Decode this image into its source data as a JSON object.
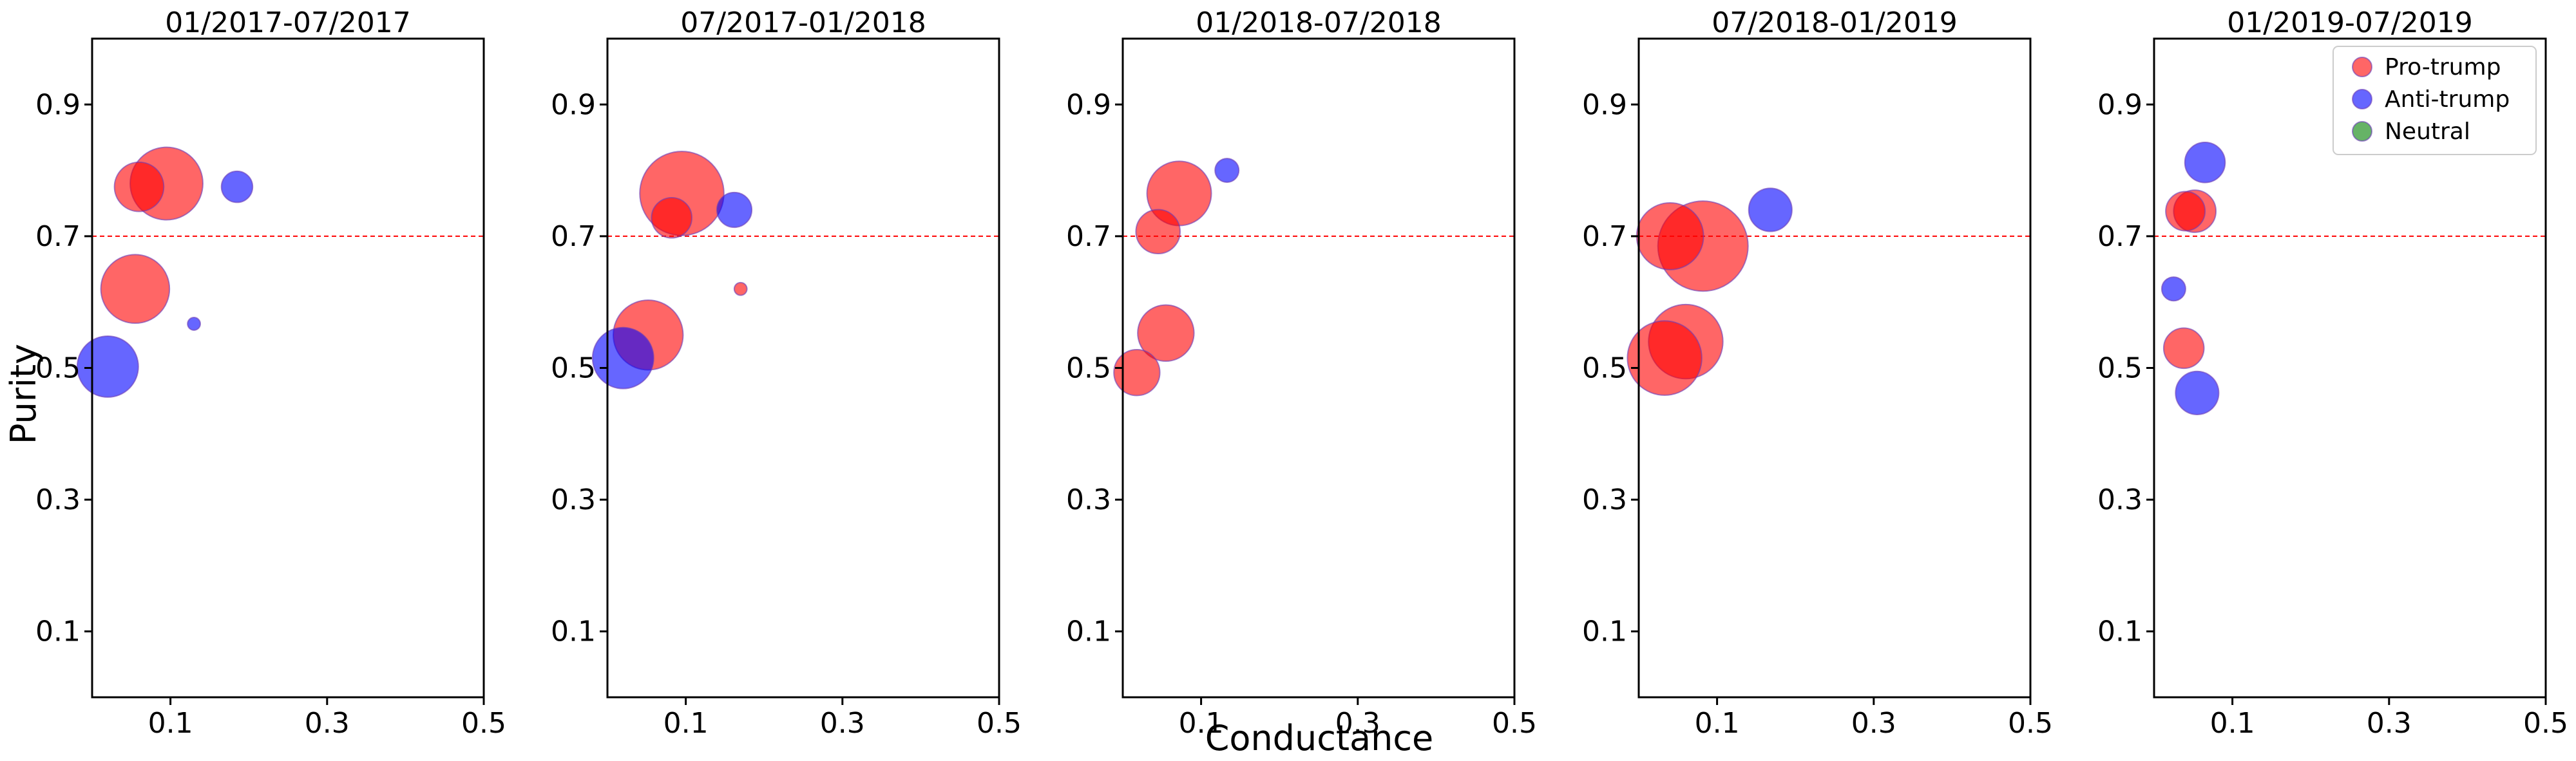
{
  "chart_data": {
    "type": "scatter",
    "xlabel": "Conductance",
    "ylabel": "Purity",
    "xlim": [
      0,
      0.5
    ],
    "ylim": [
      0,
      1.0
    ],
    "xticks": [
      0.1,
      0.3,
      0.5
    ],
    "yticks": [
      0.1,
      0.3,
      0.5,
      0.7,
      0.9
    ],
    "xtick_labels": [
      "0.1",
      "0.3",
      "0.5"
    ],
    "ytick_labels": [
      "0.1",
      "0.3",
      "0.5",
      "0.7",
      "0.9"
    ],
    "reference_line": {
      "y": 0.7,
      "style": "dashed",
      "color": "#ff0000"
    },
    "legend": {
      "placement": "top-right",
      "entries": [
        {
          "label": "Pro-trump",
          "color": "#ff0000"
        },
        {
          "label": "Anti-trump",
          "color": "#0000ff"
        },
        {
          "label": "Neutral",
          "color": "#008000"
        }
      ]
    },
    "panels": [
      {
        "title": "01/2017-07/2017",
        "points": [
          {
            "group": "Pro-trump",
            "x": 0.06,
            "y": 0.775,
            "size": 0.3
          },
          {
            "group": "Pro-trump",
            "x": 0.095,
            "y": 0.78,
            "size": 0.65
          },
          {
            "group": "Pro-trump",
            "x": 0.055,
            "y": 0.62,
            "size": 0.58
          },
          {
            "group": "Anti-trump",
            "x": 0.185,
            "y": 0.775,
            "size": 0.12
          },
          {
            "group": "Anti-trump",
            "x": 0.13,
            "y": 0.567,
            "size": 0.02
          },
          {
            "group": "Anti-trump",
            "x": 0.02,
            "y": 0.502,
            "size": 0.46
          }
        ]
      },
      {
        "title": "07/2017-01/2018",
        "points": [
          {
            "group": "Pro-trump",
            "x": 0.095,
            "y": 0.765,
            "size": 0.87
          },
          {
            "group": "Pro-trump",
            "x": 0.082,
            "y": 0.728,
            "size": 0.2
          },
          {
            "group": "Anti-trump",
            "x": 0.162,
            "y": 0.74,
            "size": 0.15
          },
          {
            "group": "Pro-trump",
            "x": 0.17,
            "y": 0.62,
            "size": 0.02
          },
          {
            "group": "Pro-trump",
            "x": 0.052,
            "y": 0.55,
            "size": 0.6
          },
          {
            "group": "Anti-trump",
            "x": 0.02,
            "y": 0.515,
            "size": 0.46
          }
        ]
      },
      {
        "title": "01/2018-07/2018",
        "points": [
          {
            "group": "Pro-trump",
            "x": 0.072,
            "y": 0.765,
            "size": 0.51
          },
          {
            "group": "Anti-trump",
            "x": 0.133,
            "y": 0.8,
            "size": 0.07
          },
          {
            "group": "Pro-trump",
            "x": 0.045,
            "y": 0.707,
            "size": 0.24
          },
          {
            "group": "Pro-trump",
            "x": 0.055,
            "y": 0.553,
            "size": 0.39
          },
          {
            "group": "Pro-trump",
            "x": 0.018,
            "y": 0.493,
            "size": 0.26
          }
        ]
      },
      {
        "title": "07/2018-01/2019",
        "points": [
          {
            "group": "Pro-trump",
            "x": 0.04,
            "y": 0.7,
            "size": 0.55
          },
          {
            "group": "Pro-trump",
            "x": 0.082,
            "y": 0.685,
            "size": 1.0
          },
          {
            "group": "Anti-trump",
            "x": 0.168,
            "y": 0.74,
            "size": 0.23
          },
          {
            "group": "Pro-trump",
            "x": 0.06,
            "y": 0.54,
            "size": 0.68
          },
          {
            "group": "Pro-trump",
            "x": 0.033,
            "y": 0.515,
            "size": 0.68
          }
        ]
      },
      {
        "title": "01/2019-07/2019",
        "points": [
          {
            "group": "Anti-trump",
            "x": 0.065,
            "y": 0.812,
            "size": 0.2
          },
          {
            "group": "Pro-trump",
            "x": 0.04,
            "y": 0.738,
            "size": 0.19
          },
          {
            "group": "Pro-trump",
            "x": 0.052,
            "y": 0.738,
            "size": 0.22
          },
          {
            "group": "Anti-trump",
            "x": 0.025,
            "y": 0.62,
            "size": 0.07
          },
          {
            "group": "Pro-trump",
            "x": 0.038,
            "y": 0.53,
            "size": 0.2
          },
          {
            "group": "Anti-trump",
            "x": 0.055,
            "y": 0.462,
            "size": 0.23
          }
        ]
      }
    ]
  }
}
